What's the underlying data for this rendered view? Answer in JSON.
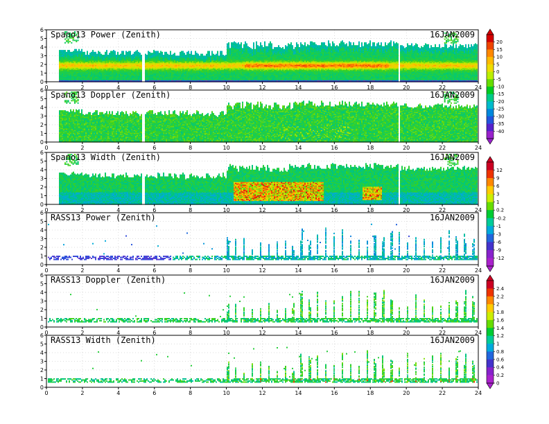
{
  "figure": {
    "date_label": "16JAN2009"
  },
  "chart_data": [
    {
      "type": "heatmap",
      "title": "Spano13 Power (Zenith)",
      "date": "16JAN2009",
      "xlim": [
        0,
        24
      ],
      "ylim": [
        0,
        6
      ],
      "x_ticks": [
        0,
        2,
        4,
        6,
        8,
        10,
        12,
        14,
        16,
        18,
        20,
        22,
        24
      ],
      "y_ticks": [
        0,
        1,
        2,
        3,
        4,
        5,
        6
      ],
      "colorbar": "power",
      "pattern": "power",
      "grid": true
    },
    {
      "type": "heatmap",
      "title": "Spano13 Doppler (Zenith)",
      "date": "16JAN2009",
      "xlim": [
        0,
        24
      ],
      "ylim": [
        0,
        6
      ],
      "x_ticks": [
        0,
        2,
        4,
        6,
        8,
        10,
        12,
        14,
        16,
        18,
        20,
        22,
        24
      ],
      "y_ticks": [
        0,
        1,
        2,
        3,
        4,
        5,
        6
      ],
      "colorbar": "power",
      "pattern": "doppler",
      "grid": true
    },
    {
      "type": "heatmap",
      "title": "Spano13 Width (Zenith)",
      "date": "16JAN2009",
      "xlim": [
        0,
        24
      ],
      "ylim": [
        0,
        6
      ],
      "x_ticks": [
        0,
        2,
        4,
        6,
        8,
        10,
        12,
        14,
        16,
        18,
        20,
        22,
        24
      ],
      "y_ticks": [
        0,
        1,
        2,
        3,
        4,
        5,
        6
      ],
      "colorbar": "width",
      "pattern": "width",
      "grid": true
    },
    {
      "type": "heatmap",
      "title": "RASS13 Power (Zenith)",
      "date": "16JAN2009",
      "xlim": [
        0,
        24
      ],
      "ylim": [
        0,
        6
      ],
      "x_ticks": [
        0,
        2,
        4,
        6,
        8,
        10,
        12,
        14,
        16,
        18,
        20,
        22,
        24
      ],
      "y_ticks": [
        0,
        1,
        2,
        3,
        4,
        5,
        6
      ],
      "colorbar": "width",
      "pattern": "rass_power",
      "grid": true
    },
    {
      "type": "heatmap",
      "title": "RASS13 Doppler (Zenith)",
      "date": "16JAN2009",
      "xlim": [
        0,
        24
      ],
      "ylim": [
        0,
        6
      ],
      "x_ticks": [
        0,
        2,
        4,
        6,
        8,
        10,
        12,
        14,
        16,
        18,
        20,
        22,
        24
      ],
      "y_ticks": [
        0,
        1,
        2,
        3,
        4,
        5,
        6
      ],
      "colorbar": "rass",
      "pattern": "rass",
      "grid": true
    },
    {
      "type": "heatmap",
      "title": "RASS13 Width (Zenith)",
      "date": "16JAN2009",
      "xlim": [
        0,
        24
      ],
      "ylim": [
        0,
        6
      ],
      "x_ticks": [
        0,
        2,
        4,
        6,
        8,
        10,
        12,
        14,
        16,
        18,
        20,
        22,
        24
      ],
      "y_ticks": [
        0,
        1,
        2,
        3,
        4,
        5,
        6
      ],
      "colorbar": "rass",
      "pattern": "rass_width",
      "grid": true
    }
  ],
  "colorbars": {
    "power": {
      "labels": [
        "20",
        "15",
        "10",
        "5",
        "0",
        "-5",
        "-10",
        "-15",
        "-20",
        "-25",
        "-30",
        "-35",
        "-40"
      ],
      "colors": [
        "#d40000",
        "#ee4400",
        "#ff8800",
        "#ffbb00",
        "#eedd00",
        "#bbee00",
        "#66dd00",
        "#00cc22",
        "#00cc88",
        "#00bbcc",
        "#0088dd",
        "#2255dd",
        "#5522cc",
        "#9922cc"
      ]
    },
    "width": {
      "labels": [
        "12",
        "9",
        "6",
        "3",
        "1",
        "0.2",
        "-0.2",
        "-1",
        "-3",
        "-6",
        "-9",
        "-12"
      ],
      "colors": [
        "#cc0022",
        "#ee3300",
        "#ff8800",
        "#ffcc00",
        "#ccee00",
        "#66dd00",
        "#00cc33",
        "#00cc99",
        "#00aadd",
        "#2266dd",
        "#4433cc",
        "#8822cc",
        "#aa22cc"
      ]
    },
    "rass": {
      "labels": [
        "2.4",
        "2.2",
        "2",
        "1.8",
        "1.6",
        "1.4",
        "1.2",
        "1",
        "0.8",
        "0.6",
        "0.4",
        "0.2",
        "0"
      ],
      "colors": [
        "#cc0022",
        "#ee3300",
        "#ff8800",
        "#ffcc00",
        "#ccee00",
        "#66dd00",
        "#00cc33",
        "#00cc99",
        "#00aadd",
        "#2266dd",
        "#4433cc",
        "#8822cc",
        "#aa22cc"
      ]
    }
  }
}
